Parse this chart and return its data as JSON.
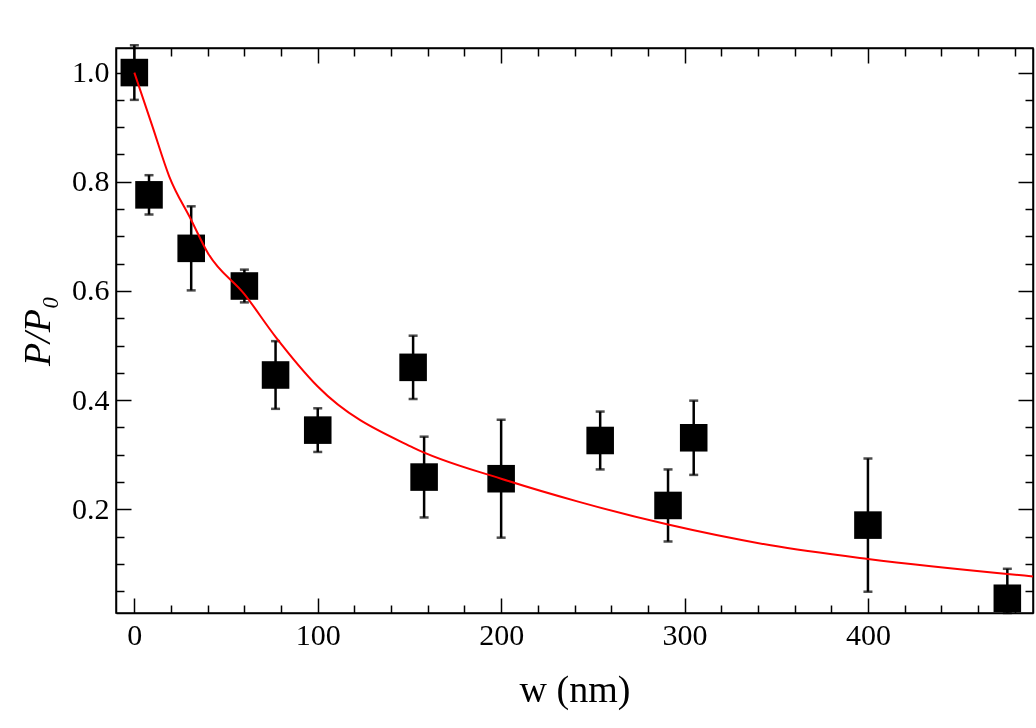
{
  "chart_data": {
    "type": "scatter",
    "xlabel": "w (nm)",
    "ylabel": "P/P₀",
    "marker": "square",
    "grid": false,
    "xlim": [
      -10,
      490
    ],
    "ylim": [
      0.01,
      1.045
    ],
    "xticks": [
      0,
      {
        "value": 20,
        "label": null
      },
      {
        "value": 40,
        "label": null
      },
      {
        "value": 60,
        "label": null
      },
      {
        "value": 80,
        "label": null
      },
      100,
      {
        "value": 120,
        "label": null
      },
      {
        "value": 140,
        "label": null
      },
      {
        "value": 160,
        "label": null
      },
      {
        "value": 180,
        "label": null
      },
      200,
      {
        "value": 220,
        "label": null
      },
      {
        "value": 240,
        "label": null
      },
      {
        "value": 260,
        "label": null
      },
      {
        "value": 280,
        "label": null
      },
      300,
      {
        "value": 320,
        "label": null
      },
      {
        "value": 340,
        "label": null
      },
      {
        "value": 360,
        "label": null
      },
      {
        "value": 380,
        "label": null
      },
      400,
      {
        "value": 420,
        "label": null
      },
      {
        "value": 440,
        "label": null
      },
      {
        "value": 460,
        "label": null
      },
      {
        "value": 480,
        "label": null
      }
    ],
    "yticks": [
      {
        "value": 0.05,
        "label": null
      },
      {
        "value": 0.1,
        "label": null
      },
      {
        "value": 0.15,
        "label": null
      },
      0.2,
      {
        "value": 0.25,
        "label": null
      },
      {
        "value": 0.3,
        "label": null
      },
      {
        "value": 0.35,
        "label": null
      },
      0.4,
      {
        "value": 0.45,
        "label": null
      },
      {
        "value": 0.5,
        "label": null
      },
      {
        "value": 0.55,
        "label": null
      },
      0.6,
      {
        "value": 0.65,
        "label": null
      },
      {
        "value": 0.7,
        "label": null
      },
      {
        "value": 0.75,
        "label": null
      },
      0.8,
      {
        "value": 0.85,
        "label": null
      },
      {
        "value": 0.9,
        "label": null
      },
      {
        "value": 0.95,
        "label": null
      },
      {
        "value": 1,
        "label": "1.0"
      }
    ],
    "series": [
      {
        "color": "#000000",
        "x": [
          0,
          8,
          31,
          60,
          77,
          100,
          152,
          158,
          200,
          254,
          291,
          305,
          400,
          476
        ],
        "values": [
          1.0,
          0.776,
          0.678,
          0.609,
          0.446,
          0.345,
          0.46,
          0.259,
          0.256,
          0.326,
          0.207,
          0.331,
          0.171,
          0.037
        ],
        "errors": [
          0.05,
          0.036,
          0.077,
          0.03,
          0.062,
          0.04,
          0.058,
          0.074,
          0.108,
          0.053,
          0.066,
          0.068,
          0.122,
          [
            0.01,
            0.091
          ]
        ]
      },
      {
        "type": "line",
        "color": "#ff0000",
        "marker": "none",
        "x": [
          0,
          10,
          19,
          31,
          40,
          60,
          77,
          100,
          152,
          200,
          242,
          291,
          347,
          400,
          490
        ],
        "values": [
          1.0,
          0.9,
          0.81,
          0.73,
          0.67,
          0.594,
          0.516,
          0.425,
          0.313,
          0.256,
          0.214,
          0.172,
          0.134,
          0.109,
          0.077
        ]
      }
    ]
  }
}
